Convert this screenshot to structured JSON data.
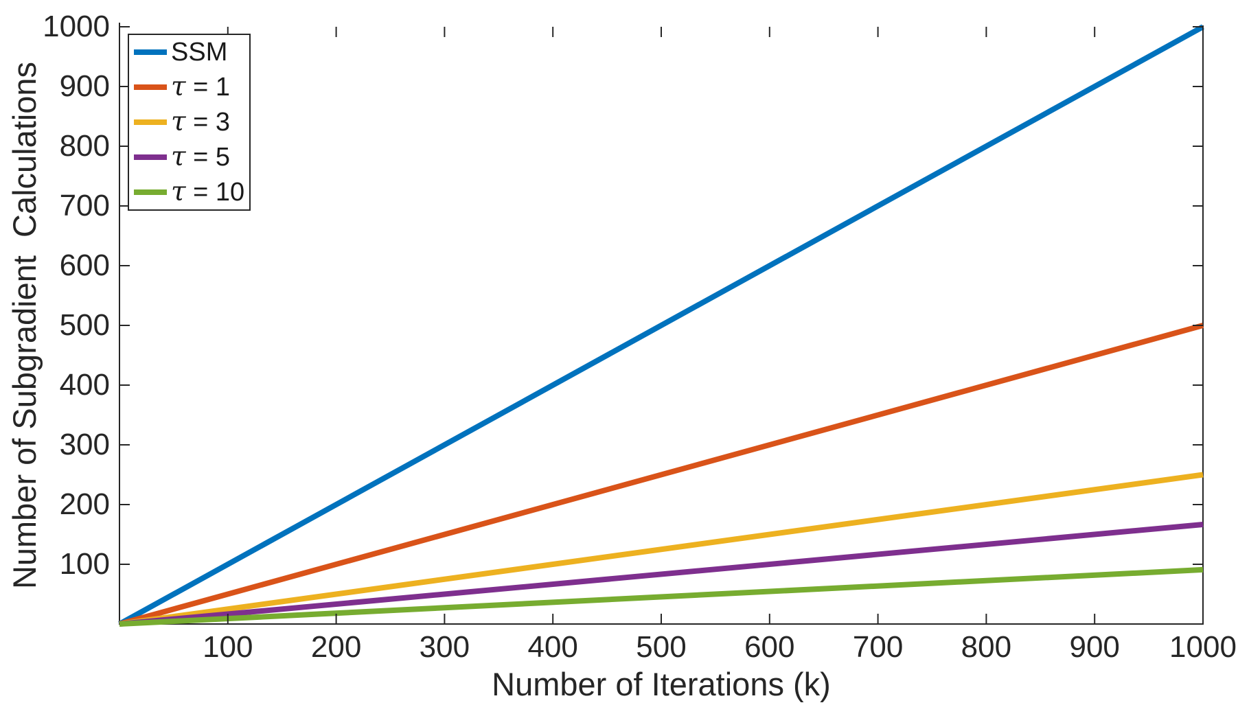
{
  "figure": {
    "background": "#ffffff",
    "axis_color": "#262626",
    "text_color": "#262626"
  },
  "chart_data": {
    "type": "line",
    "title": "",
    "xlabel": "Number of Iterations (k)",
    "ylabel": "Number of Subgradient  Calculations",
    "xlim": [
      0,
      1000
    ],
    "ylim": [
      0,
      1000
    ],
    "x_ticks": [
      100,
      200,
      300,
      400,
      500,
      600,
      700,
      800,
      900,
      1000
    ],
    "y_ticks": [
      100,
      200,
      300,
      400,
      500,
      600,
      700,
      800,
      900,
      1000
    ],
    "grid": false,
    "legend_position": "top-left",
    "series": [
      {
        "name": "SSM",
        "legend_symbol": "",
        "legend_text": "SSM",
        "color": "#0072BD",
        "x": [
          0,
          1000
        ],
        "y": [
          0,
          1000
        ]
      },
      {
        "name": "tau = 1",
        "legend_symbol": "τ",
        "legend_text": " = 1",
        "color": "#D95319",
        "x": [
          0,
          1000
        ],
        "y": [
          0,
          500
        ]
      },
      {
        "name": "tau = 3",
        "legend_symbol": "τ",
        "legend_text": " = 3",
        "color": "#EDB120",
        "x": [
          0,
          1000
        ],
        "y": [
          0,
          250
        ]
      },
      {
        "name": "tau = 5",
        "legend_symbol": "τ",
        "legend_text": " = 5",
        "color": "#7E2F8E",
        "x": [
          0,
          1000
        ],
        "y": [
          0,
          166.7
        ]
      },
      {
        "name": "tau = 10",
        "legend_symbol": "τ",
        "legend_text": " = 10",
        "color": "#77AC30",
        "x": [
          0,
          1000
        ],
        "y": [
          0,
          90.9
        ]
      }
    ]
  }
}
